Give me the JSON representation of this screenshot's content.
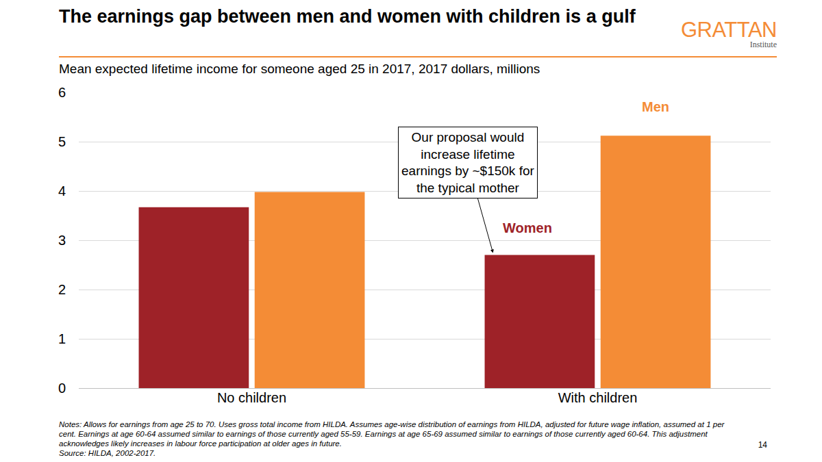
{
  "chart_data": {
    "type": "bar",
    "title": "The earnings gap between men and women with children is a gulf",
    "subtitle": "Mean expected lifetime income for someone aged 25 in 2017, 2017 dollars, millions",
    "categories": [
      "No children",
      "With children"
    ],
    "series": [
      {
        "name": "Women",
        "color": "#9e2228",
        "values": [
          3.67,
          2.7
        ]
      },
      {
        "name": "Men",
        "color": "#f48c36",
        "values": [
          3.98,
          5.12
        ]
      }
    ],
    "ylim": [
      0,
      6
    ],
    "yticks": [
      0,
      1,
      2,
      3,
      4,
      5,
      6
    ],
    "grid": true,
    "annotations": [
      {
        "text": "Our proposal would\nincrease lifetime\nearnings by ~$150k for\nthe typical mother",
        "category": "With children",
        "series": "Women"
      }
    ],
    "notes": "Notes: Allows for earnings from age 25 to 70. Uses gross total income from HILDA. Assumes age-wise distribution of earnings from HILDA, adjusted for future wage inflation, assumed at 1 per cent. Earnings at age 60-64 assumed similar to earnings of those currently aged 55-59. Earnings at age 65-69 assumed similar to earnings of those currently aged 60-64. This adjustment acknowledges likely increases in labour force participation at older ages in future.",
    "source": "Source: HILDA, 2002-2017.",
    "logo": {
      "name": "GRATTAN",
      "subtitle": "Institute"
    },
    "page_number": "14"
  }
}
